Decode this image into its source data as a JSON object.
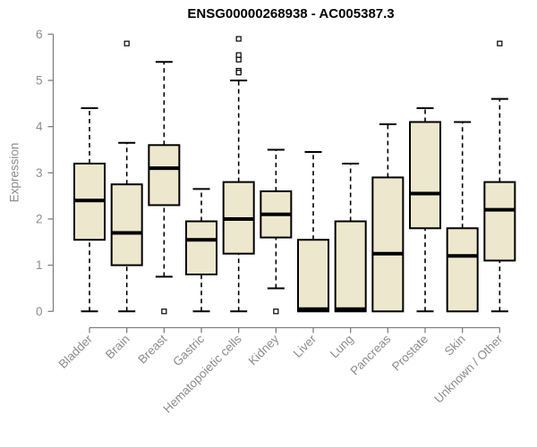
{
  "chart_data": {
    "type": "boxplot",
    "title": "ENSG00000268938 - AC005387.3",
    "xlabel": "",
    "ylabel": "Expression",
    "ylim": [
      0,
      6
    ],
    "yticks": [
      0,
      1,
      2,
      3,
      4,
      5,
      6
    ],
    "grid": false,
    "legend_position": "none",
    "categories": [
      "Bladder",
      "Brain",
      "Breast",
      "Gastric",
      "Hematopoietic cells",
      "Kidney",
      "Liver",
      "Lung",
      "Pancreas",
      "Prostate",
      "Skin",
      "Unknown / Other"
    ],
    "boxes": [
      {
        "category": "Bladder",
        "low": 0.0,
        "q1": 1.55,
        "median": 2.4,
        "q3": 3.2,
        "high": 4.4,
        "outliers": []
      },
      {
        "category": "Brain",
        "low": 0.0,
        "q1": 1.0,
        "median": 1.7,
        "q3": 2.75,
        "high": 3.65,
        "outliers": [
          5.8
        ]
      },
      {
        "category": "Breast",
        "low": 0.75,
        "q1": 2.3,
        "median": 3.1,
        "q3": 3.6,
        "high": 5.4,
        "outliers": [
          0.0
        ]
      },
      {
        "category": "Gastric",
        "low": 0.0,
        "q1": 0.8,
        "median": 1.55,
        "q3": 1.95,
        "high": 2.65,
        "outliers": []
      },
      {
        "category": "Hematopoietic cells",
        "low": 0.0,
        "q1": 1.25,
        "median": 2.0,
        "q3": 2.8,
        "high": 5.0,
        "outliers": [
          5.9,
          5.55,
          5.45,
          5.21,
          5.17
        ]
      },
      {
        "category": "Kidney",
        "low": 0.5,
        "q1": 1.6,
        "median": 2.1,
        "q3": 2.6,
        "high": 3.5,
        "outliers": [
          0.0
        ]
      },
      {
        "category": "Liver",
        "low": 0.0,
        "q1": 0.0,
        "median": 0.05,
        "q3": 1.55,
        "high": 3.45,
        "outliers": []
      },
      {
        "category": "Lung",
        "low": 0.0,
        "q1": 0.0,
        "median": 0.05,
        "q3": 1.95,
        "high": 3.2,
        "outliers": []
      },
      {
        "category": "Pancreas",
        "low": 0.0,
        "q1": 0.0,
        "median": 1.25,
        "q3": 2.9,
        "high": 4.05,
        "outliers": []
      },
      {
        "category": "Prostate",
        "low": 0.0,
        "q1": 1.8,
        "median": 2.55,
        "q3": 4.1,
        "high": 4.4,
        "outliers": []
      },
      {
        "category": "Skin",
        "low": 0.0,
        "q1": 0.0,
        "median": 1.2,
        "q3": 1.8,
        "high": 4.1,
        "outliers": []
      },
      {
        "category": "Unknown / Other",
        "low": 0.0,
        "q1": 1.1,
        "median": 2.2,
        "q3": 2.8,
        "high": 4.6,
        "outliers": [
          5.8
        ]
      }
    ],
    "colors": {
      "box_fill": "#EDE8CD",
      "box_border": "#000000",
      "median": "#000000",
      "whisker": "#000000",
      "outlier_fill": "#FFFFFF",
      "axis": "#808080",
      "tick_label": "#8C8C8C",
      "axis_label": "#8C8C8C",
      "title": "#000000",
      "background": "#FFFFFF"
    }
  }
}
